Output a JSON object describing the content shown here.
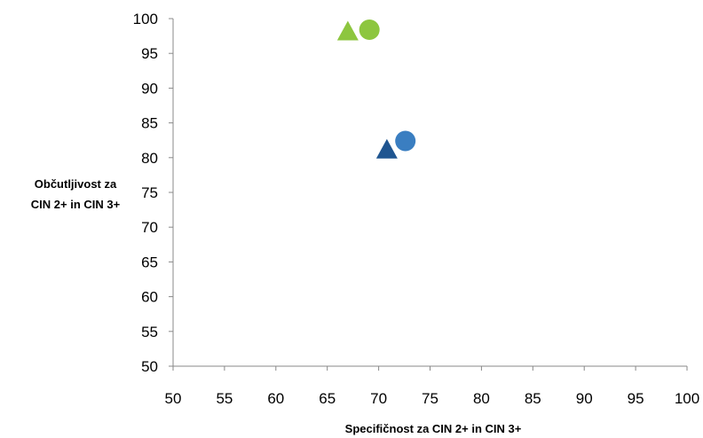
{
  "chart_data": {
    "type": "scatter",
    "xlabel": "Specifičnost za CIN 2+ in CIN 3+",
    "ylabel": [
      "Občutljivost za",
      "CIN 2+ in CIN 3+"
    ],
    "xlim": [
      50,
      100
    ],
    "ylim": [
      50,
      100
    ],
    "xticks": [
      50,
      55,
      60,
      65,
      70,
      75,
      80,
      85,
      90,
      95,
      100
    ],
    "yticks": [
      50,
      55,
      60,
      65,
      70,
      75,
      80,
      85,
      90,
      95,
      100
    ],
    "grid": false,
    "points": [
      {
        "x": 67.0,
        "y": 98.0,
        "shape": "triangle",
        "color": "#8dc63f"
      },
      {
        "x": 69.1,
        "y": 98.4,
        "shape": "circle",
        "color": "#8dc63f"
      },
      {
        "x": 70.8,
        "y": 81.0,
        "shape": "triangle",
        "color": "#1f5590"
      },
      {
        "x": 72.6,
        "y": 82.4,
        "shape": "circle",
        "color": "#3a7ec1"
      }
    ]
  }
}
